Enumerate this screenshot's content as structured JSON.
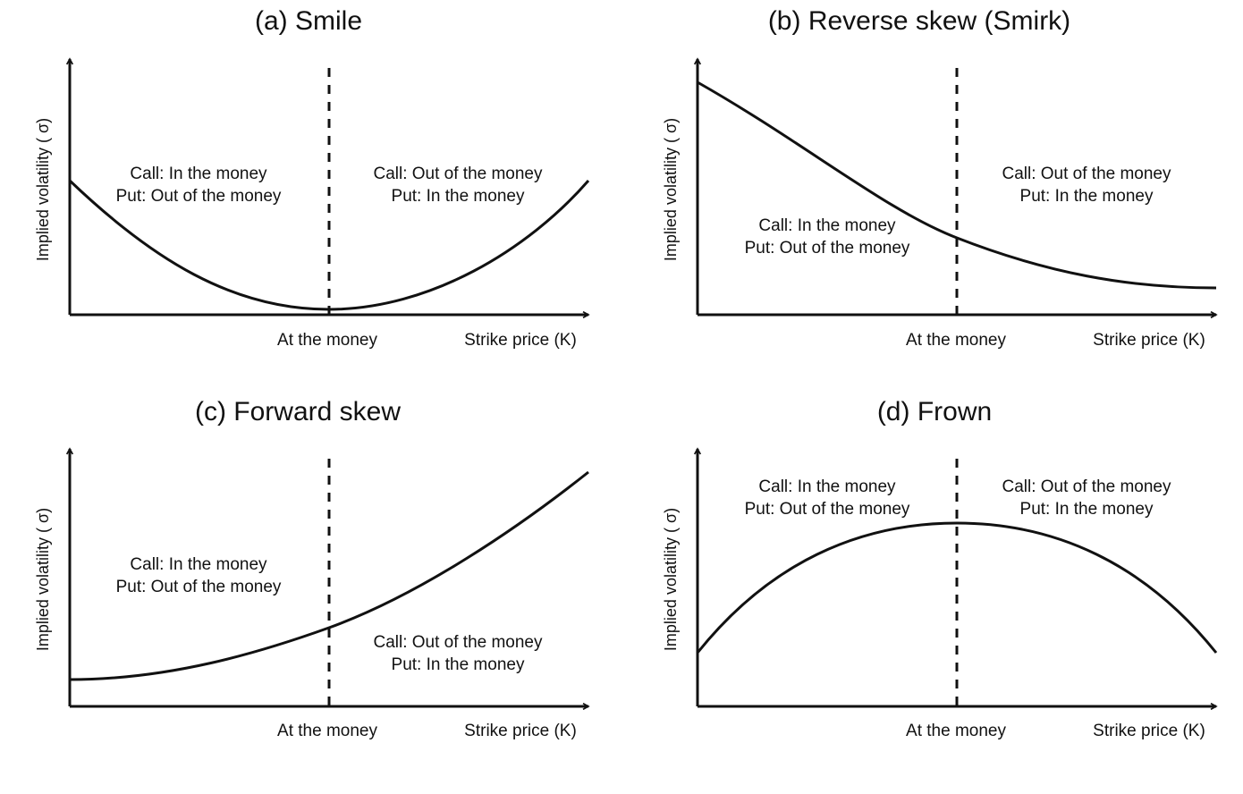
{
  "panels": [
    {
      "title": "(a)  Smile",
      "ylabel": "Implied volatility ( σ)",
      "atm_label": "At the money",
      "x_axis_label": "Strike price (K)",
      "region_left": [
        "Call:  In the money",
        "Put:  Out of the money"
      ],
      "region_right": [
        "Call:  Out of the money",
        "Put:  In the money"
      ],
      "curve_shape": "smile"
    },
    {
      "title": "(b)  Reverse skew (Smirk)",
      "ylabel": "Implied volatility ( σ)",
      "atm_label": "At the money",
      "x_axis_label": "Strike price (K)",
      "region_left": [
        "Call:  In the money",
        "Put:  Out of the money"
      ],
      "region_right": [
        "Call:  Out of the money",
        "Put:  In the money"
      ],
      "curve_shape": "reverse-skew"
    },
    {
      "title": "(c)  Forward skew",
      "ylabel": "Implied volatility ( σ)",
      "atm_label": "At the money",
      "x_axis_label": "Strike price (K)",
      "region_left": [
        "Call:  In the money",
        "Put:  Out of the money"
      ],
      "region_right": [
        "Call:  Out of the money",
        "Put:  In the money"
      ],
      "curve_shape": "forward-skew"
    },
    {
      "title": "(d)  Frown",
      "ylabel": "Implied volatility ( σ)",
      "atm_label": "At the money",
      "x_axis_label": "Strike price (K)",
      "region_left": [
        "Call:  In the money",
        "Put:  Out of the money"
      ],
      "region_right": [
        "Call:  Out of the money",
        "Put:  In the money"
      ],
      "curve_shape": "frown"
    }
  ]
}
